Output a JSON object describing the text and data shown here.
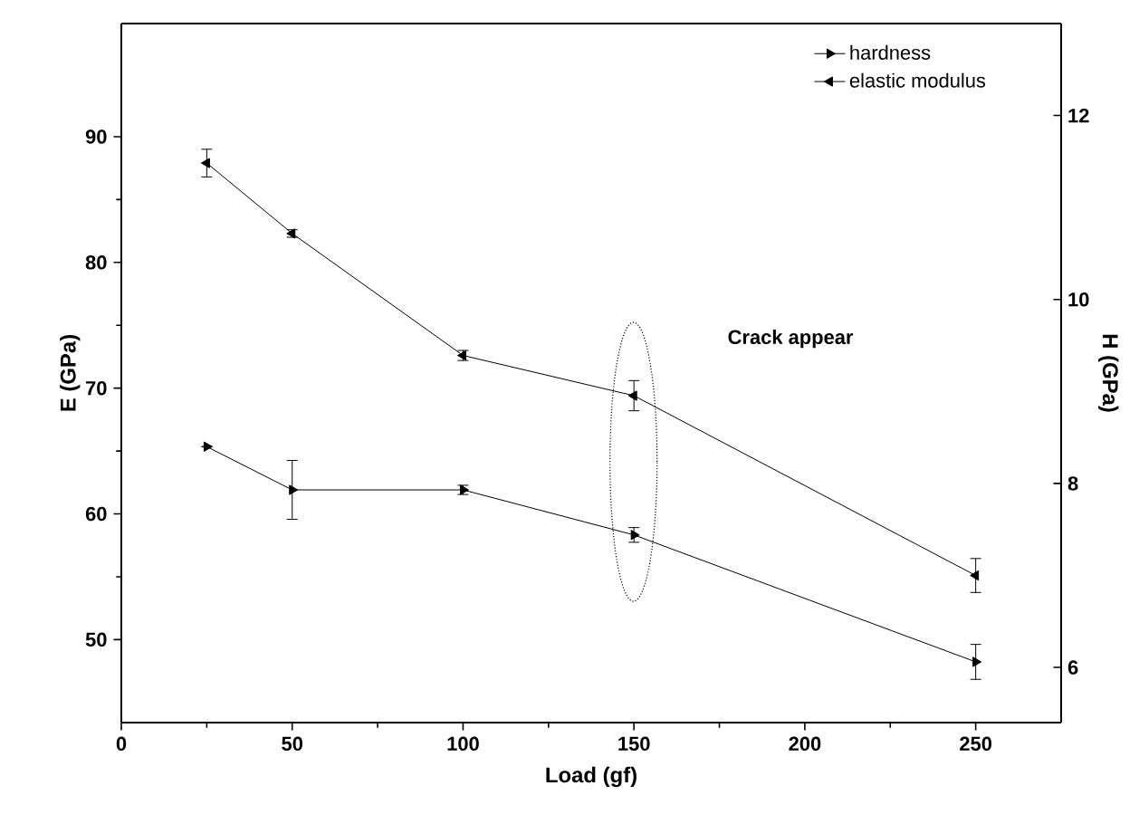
{
  "chart_data": {
    "type": "line",
    "xlabel": "Load (gf)",
    "ylabel": "E (GPa)",
    "y2label": "H (GPa)",
    "x": [
      25,
      50,
      100,
      150,
      250
    ],
    "series": [
      {
        "name": "hardness",
        "color": "#000000",
        "axis": "y2",
        "values": [
          8.4,
          7.93,
          7.93,
          7.44,
          6.06
        ],
        "errors": [
          null,
          0.32,
          0.05,
          0.08,
          0.19
        ]
      },
      {
        "name": "elastic modulus",
        "color": "#000000",
        "values": [
          87.9,
          82.3,
          72.6,
          69.4,
          55.1
        ],
        "errors": [
          1.1,
          0.3,
          0.4,
          1.2,
          1.35
        ]
      }
    ],
    "xlim": [
      0,
      275
    ],
    "xticks": [
      0,
      50,
      100,
      150,
      200,
      250
    ],
    "ylim": [
      43.4,
      99
    ],
    "yticks": [
      50,
      60,
      70,
      80,
      90
    ],
    "y2lim": [
      5.4,
      13
    ],
    "y2ticks": [
      6,
      8,
      10,
      12
    ],
    "annotations": [
      "Crack appear"
    ],
    "legend": "top right",
    "marker": "triangle",
    "line_style": "solid",
    "grid": false
  }
}
